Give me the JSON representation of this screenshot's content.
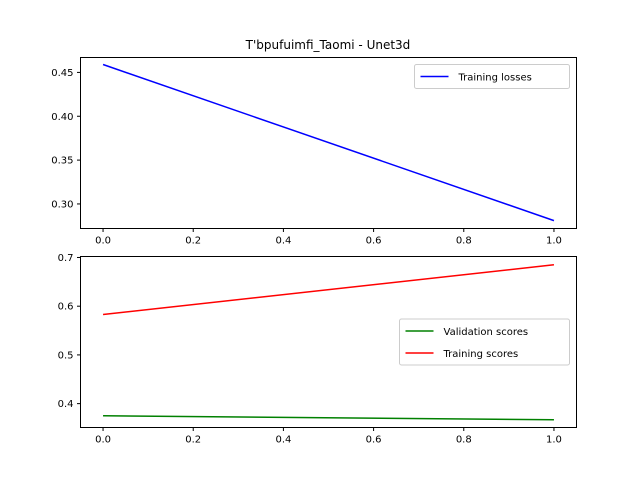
{
  "chart_data": [
    {
      "type": "line",
      "title": "T'bpufuimfi_Taomi - Unet3d",
      "xlabel": "",
      "ylabel": "",
      "xlim": [
        -0.05,
        1.05
      ],
      "ylim": [
        0.272,
        0.467
      ],
      "xticks": [
        0.0,
        0.2,
        0.4,
        0.6,
        0.8,
        1.0
      ],
      "yticks": [
        0.3,
        0.35,
        0.4,
        0.45
      ],
      "xtick_labels": [
        "0.0",
        "0.2",
        "0.4",
        "0.6",
        "0.8",
        "1.0"
      ],
      "ytick_labels": [
        "0.30",
        "0.35",
        "0.40",
        "0.45"
      ],
      "grid": false,
      "legend_position": "top-right",
      "series": [
        {
          "name": "Training losses",
          "color": "#0000ff",
          "x": [
            0,
            1
          ],
          "y": [
            0.459,
            0.281
          ]
        }
      ]
    },
    {
      "type": "line",
      "title": "",
      "xlabel": "",
      "ylabel": "",
      "xlim": [
        -0.05,
        1.05
      ],
      "ylim": [
        0.351,
        0.702
      ],
      "xticks": [
        0.0,
        0.2,
        0.4,
        0.6,
        0.8,
        1.0
      ],
      "yticks": [
        0.4,
        0.5,
        0.6,
        0.7
      ],
      "xtick_labels": [
        "0.0",
        "0.2",
        "0.4",
        "0.6",
        "0.8",
        "1.0"
      ],
      "ytick_labels": [
        "0.4",
        "0.5",
        "0.6",
        "0.7"
      ],
      "grid": false,
      "legend_position": "center-right",
      "series": [
        {
          "name": "Validation scores",
          "color": "#008000",
          "x": [
            0,
            1
          ],
          "y": [
            0.375,
            0.367
          ]
        },
        {
          "name": "Training scores",
          "color": "#ff0000",
          "x": [
            0,
            1
          ],
          "y": [
            0.583,
            0.685
          ]
        }
      ]
    }
  ]
}
